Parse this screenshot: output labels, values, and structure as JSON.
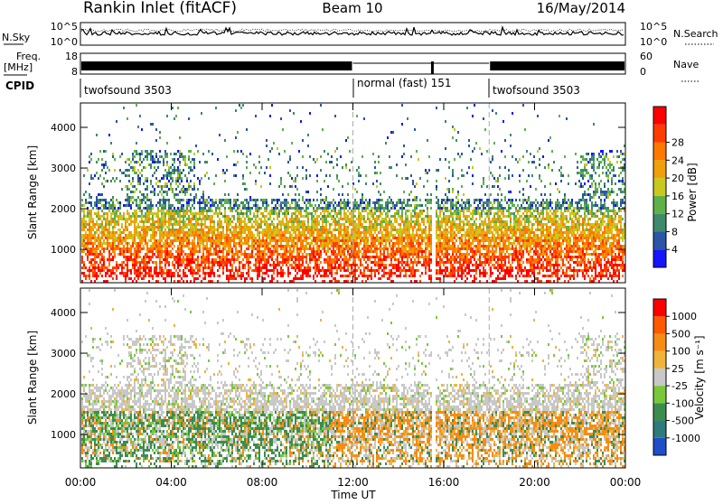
{
  "header": {
    "station": "Rankin Inlet (fitACF)",
    "beam": "Beam 10",
    "date": "16/May/2014"
  },
  "top_panels": {
    "nsky_label": "N.Sky",
    "nsky_ticks": [
      "10^5",
      "10^0"
    ],
    "nsearch_label": "N.Search",
    "nsearch_ticks": [
      "10^5",
      "10^0"
    ],
    "freq_label": "Freq.",
    "freq_unit": "[MHz]",
    "freq_ticks": [
      "18",
      "8"
    ],
    "nave_label": "Nave",
    "nave_ticks": [
      "60",
      "0"
    ],
    "cpid_label": "CPID",
    "cpid_segments": [
      {
        "label": "twofsound 3503",
        "start_hour": 0,
        "end_hour": 12
      },
      {
        "label": "normal (fast) 151",
        "start_hour": 12,
        "end_hour": 18
      },
      {
        "label": "twofsound 3503",
        "start_hour": 18,
        "end_hour": 24
      }
    ]
  },
  "chart_data": [
    {
      "type": "heatmap",
      "quantity": "power",
      "ylabel": "Slant Range [km]",
      "yticks": [
        1000,
        2000,
        3000,
        4000
      ],
      "ylim": [
        180,
        4600
      ],
      "xlim": [
        0,
        24
      ],
      "colorbar": {
        "label": "Power [dB]",
        "ticks": [
          "4",
          "8",
          "12",
          "16",
          "20",
          "24",
          "28"
        ],
        "colors": [
          "#1414ff",
          "#2a55a8",
          "#3f8a6a",
          "#5fb04a",
          "#c8c81e",
          "#f0a00a",
          "#ff7800",
          "#ff3c00",
          "#ff0000"
        ]
      },
      "mode_change_hours": [
        12,
        18
      ]
    },
    {
      "type": "heatmap",
      "quantity": "velocity",
      "ylabel": "Slant Range [km]",
      "yticks": [
        1000,
        2000,
        3000,
        4000
      ],
      "ylim": [
        180,
        4600
      ],
      "xlim": [
        0,
        24
      ],
      "colorbar": {
        "label": "Velocity [m s⁻¹]",
        "ticks": [
          "1000",
          "500",
          "100",
          "25",
          "-25",
          "-100",
          "-500",
          "-1000"
        ],
        "colors": [
          "#1e4fc8",
          "#2f7a7a",
          "#3c8c50",
          "#78c83c",
          "#c8c8c8",
          "#f0b43c",
          "#f58c14",
          "#ff5a00",
          "#ff0000"
        ]
      },
      "mode_change_hours": [
        12,
        18
      ]
    }
  ],
  "x_axis": {
    "label": "Time UT",
    "ticks": [
      "00:00",
      "04:00",
      "08:00",
      "12:00",
      "16:00",
      "20:00",
      "00:00"
    ]
  }
}
